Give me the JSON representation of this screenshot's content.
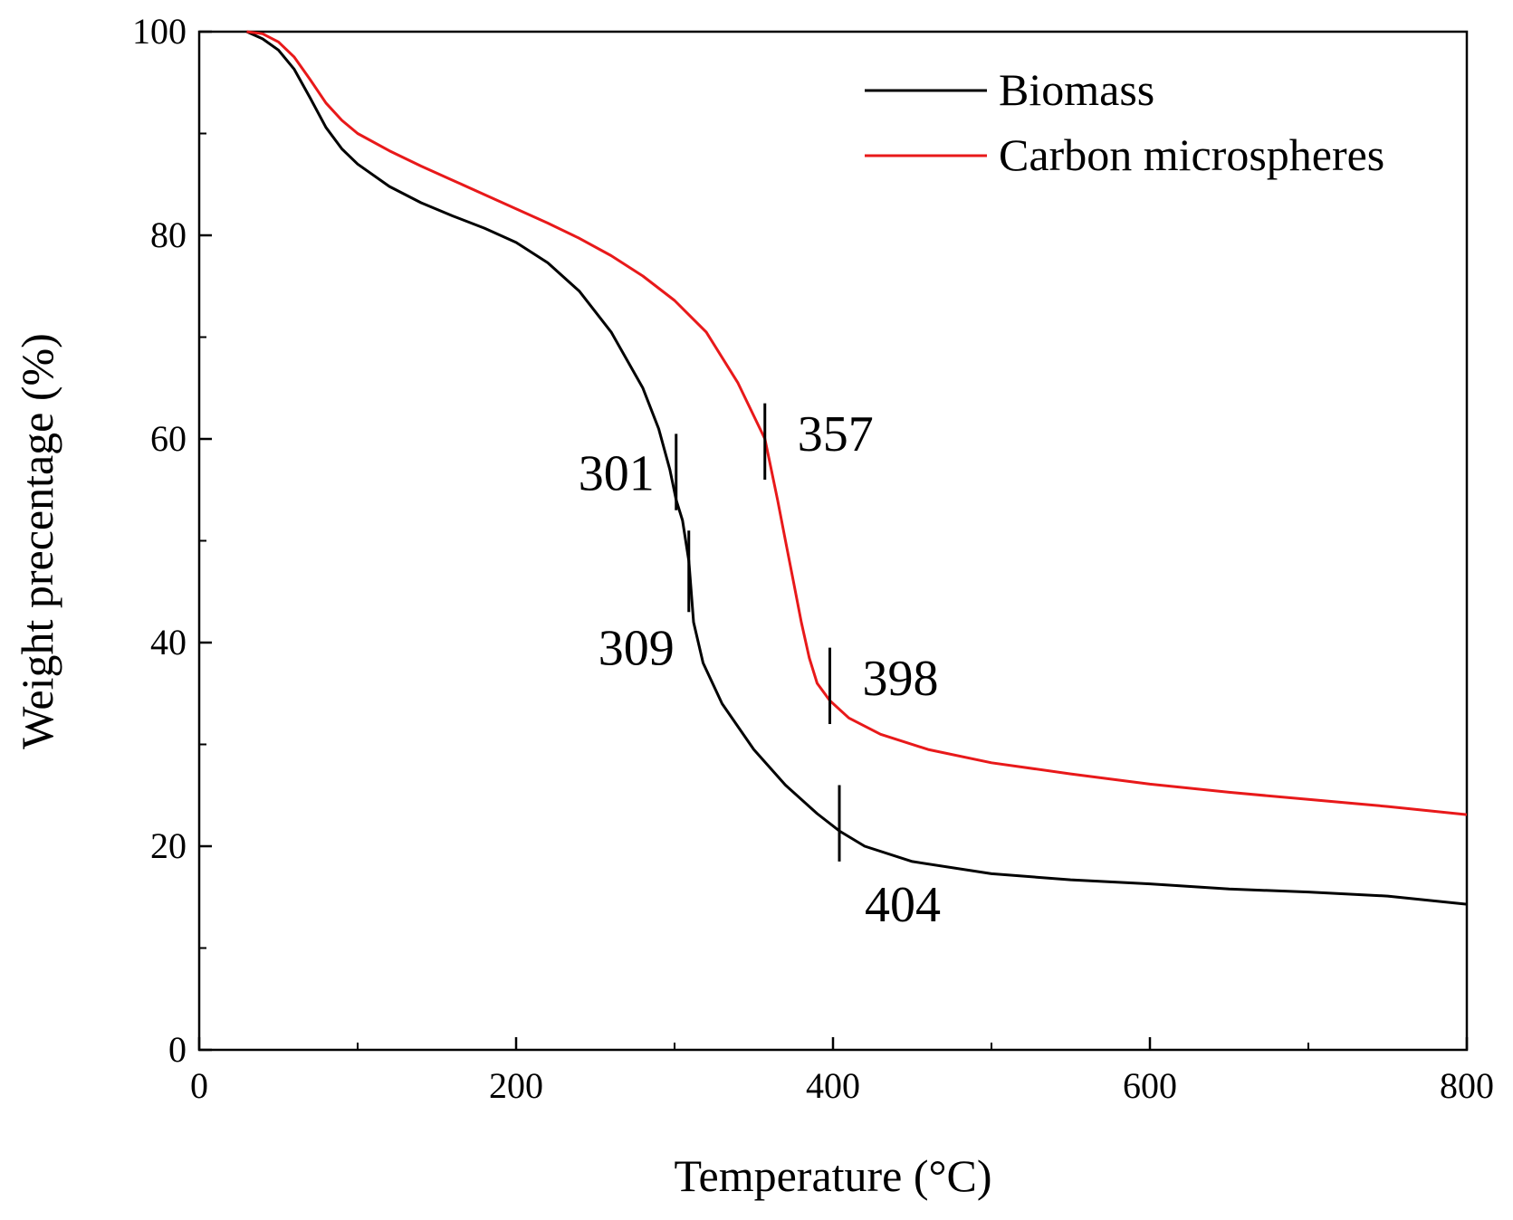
{
  "chart_data": {
    "type": "line",
    "title": "",
    "xlabel": "Temperature (°C)",
    "ylabel": "Weight precentage (%)",
    "xlim": [
      0,
      800
    ],
    "ylim": [
      0,
      100
    ],
    "x_ticks": [
      0,
      200,
      400,
      600,
      800
    ],
    "x_minor_ticks": [
      100,
      300,
      500,
      700
    ],
    "y_ticks": [
      0,
      20,
      40,
      60,
      80,
      100
    ],
    "y_minor_ticks": [
      10,
      30,
      50,
      70,
      90
    ],
    "grid": false,
    "legend_position": "top-right",
    "series": [
      {
        "name": "Biomass",
        "color": "#000000",
        "points": [
          [
            30,
            100
          ],
          [
            40,
            99.3
          ],
          [
            50,
            98.2
          ],
          [
            60,
            96.3
          ],
          [
            70,
            93.5
          ],
          [
            80,
            90.6
          ],
          [
            90,
            88.5
          ],
          [
            100,
            87
          ],
          [
            120,
            84.8
          ],
          [
            140,
            83.2
          ],
          [
            160,
            81.9
          ],
          [
            180,
            80.7
          ],
          [
            200,
            79.3
          ],
          [
            220,
            77.3
          ],
          [
            240,
            74.5
          ],
          [
            260,
            70.5
          ],
          [
            280,
            65
          ],
          [
            290,
            61
          ],
          [
            297,
            57
          ],
          [
            301,
            54
          ],
          [
            305,
            52
          ],
          [
            309,
            48
          ],
          [
            312,
            42
          ],
          [
            318,
            38
          ],
          [
            330,
            34
          ],
          [
            350,
            29.5
          ],
          [
            370,
            26
          ],
          [
            390,
            23.2
          ],
          [
            404,
            21.5
          ],
          [
            420,
            20
          ],
          [
            450,
            18.5
          ],
          [
            500,
            17.3
          ],
          [
            550,
            16.7
          ],
          [
            600,
            16.3
          ],
          [
            650,
            15.8
          ],
          [
            700,
            15.5
          ],
          [
            750,
            15.1
          ],
          [
            800,
            14.3
          ]
        ]
      },
      {
        "name": "Carbon microspheres",
        "color": "#e8191a",
        "points": [
          [
            30,
            100
          ],
          [
            40,
            99.8
          ],
          [
            50,
            99
          ],
          [
            60,
            97.5
          ],
          [
            70,
            95.3
          ],
          [
            80,
            93
          ],
          [
            90,
            91.3
          ],
          [
            100,
            90
          ],
          [
            120,
            88.3
          ],
          [
            140,
            86.8
          ],
          [
            160,
            85.4
          ],
          [
            180,
            84
          ],
          [
            200,
            82.6
          ],
          [
            220,
            81.2
          ],
          [
            240,
            79.7
          ],
          [
            260,
            78
          ],
          [
            280,
            76
          ],
          [
            300,
            73.6
          ],
          [
            320,
            70.5
          ],
          [
            340,
            65.5
          ],
          [
            357,
            60
          ],
          [
            365,
            54
          ],
          [
            370,
            50
          ],
          [
            375,
            46
          ],
          [
            380,
            42
          ],
          [
            385,
            38.5
          ],
          [
            390,
            36
          ],
          [
            398,
            34.3
          ],
          [
            410,
            32.6
          ],
          [
            430,
            31
          ],
          [
            460,
            29.5
          ],
          [
            500,
            28.2
          ],
          [
            550,
            27.1
          ],
          [
            600,
            26.1
          ],
          [
            650,
            25.3
          ],
          [
            700,
            24.6
          ],
          [
            750,
            23.9
          ],
          [
            800,
            23.1
          ]
        ]
      }
    ],
    "annotations": [
      {
        "text": "301",
        "x": 301,
        "y_low": 53,
        "y_high": 60.5,
        "label_side": "left"
      },
      {
        "text": "309",
        "x": 309,
        "y_low": 43,
        "y_high": 51,
        "label_side": "left-below"
      },
      {
        "text": "357",
        "x": 357,
        "y_low": 56,
        "y_high": 63.5,
        "label_side": "right"
      },
      {
        "text": "398",
        "x": 398,
        "y_low": 32,
        "y_high": 39.5,
        "label_side": "right"
      },
      {
        "text": "404",
        "x": 404,
        "y_low": 18.5,
        "y_high": 26,
        "label_side": "right-below"
      }
    ]
  }
}
